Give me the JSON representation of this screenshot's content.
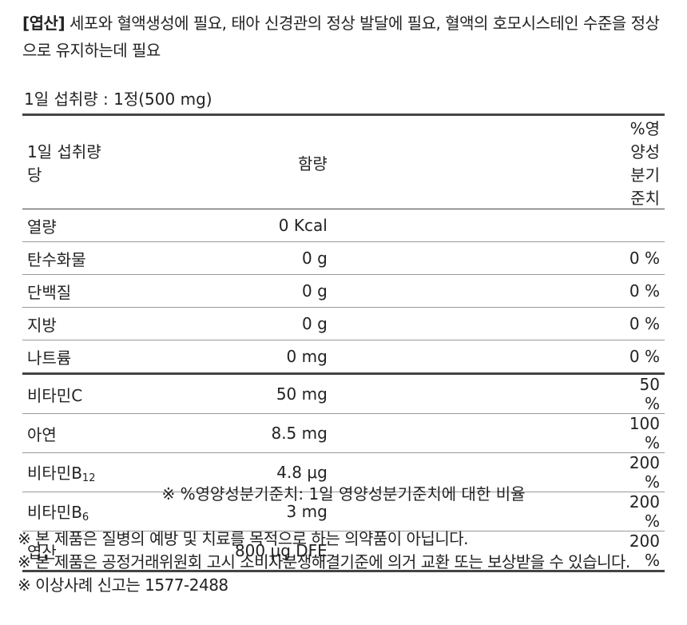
{
  "intro": {
    "tag": "[엽산]",
    "text": " 세포와 혈액생성에 필요, 태아 신경관의 정상 발달에 필요, 혈액의 호모시스테인 수준을 정상으로 유지하는데 필요"
  },
  "serving": "1일 섭취량 : 1정(500 mg)",
  "table": {
    "header": [
      "1일 섭취량 당",
      "함량",
      "%영양성분기준치"
    ],
    "groups": [
      {
        "rows": [
          {
            "name": "열량",
            "amount": "0 Kcal"
          },
          {
            "name": "탄수화물",
            "amount": "0 g",
            "percent": "0 %"
          },
          {
            "name": "단백질",
            "amount": "0 g",
            "percent": "0 %"
          },
          {
            "name": "지방",
            "amount": "0 g",
            "percent": "0 %"
          },
          {
            "name": "나트륨",
            "amount": "0 mg",
            "percent": "0 %"
          }
        ]
      },
      {
        "rows": [
          {
            "name": "비타민C",
            "amount": "50 mg",
            "percent": "50 %"
          },
          {
            "name": "아연",
            "amount": "8.5 mg",
            "percent": "100 %"
          },
          {
            "name": "비타민B",
            "sub": "12",
            "amount": "4.8 μg",
            "percent": "200 %"
          },
          {
            "name": "비타민B",
            "sub": "6",
            "amount": "3 mg",
            "percent": "200 %"
          },
          {
            "name": "엽산",
            "amount": "800 μg DFE",
            "percent": "200 %"
          }
        ]
      }
    ],
    "footnote": "※ %영양성분기준치: 1일 영양성분기준치에 대한 비율"
  },
  "notes": [
    "※ 본 제품은 질병의 예방 및 치료를 목적으로 하는 의약품이 아닙니다.",
    "※ 본 제품은 공정거래위원회 고시 소비자분쟁해결기준에 의거 교환 또는 보상받을 수 있습니다.",
    "※ 이상사례 신고는 1577-2488"
  ]
}
